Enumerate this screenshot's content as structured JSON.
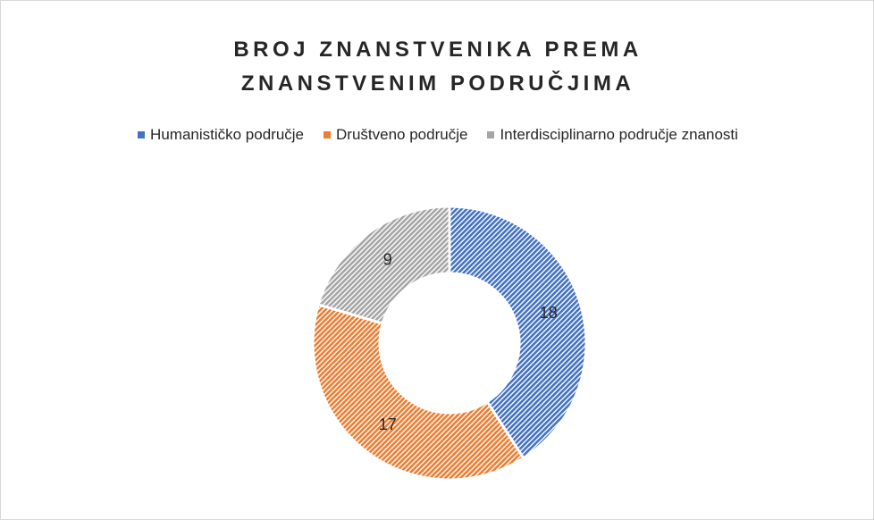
{
  "chart_data": {
    "type": "donut",
    "title": "BROJ ZNANSTVENIKA PREMA ZNANSTVENIM PODRUČJIMA",
    "categories": [
      "Humanističko područje",
      "Društveno područje",
      "Interdisciplinarno područje znanosti"
    ],
    "values": [
      18,
      17,
      9
    ],
    "colors": [
      "#4472c4",
      "#ed7d31",
      "#a5a5a5"
    ],
    "legend": "top"
  }
}
